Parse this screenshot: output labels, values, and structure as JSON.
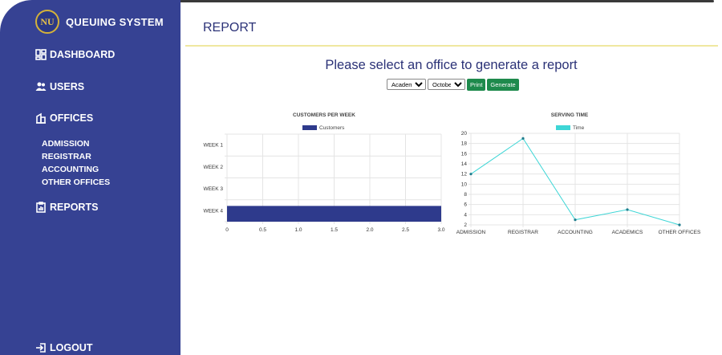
{
  "brand": {
    "logo_text": "NU",
    "title": "QUEUING SYSTEM"
  },
  "nav": {
    "dashboard": "DASHBOARD",
    "users": "USERS",
    "offices": "OFFICES",
    "offices_sub": [
      "ADMISSION",
      "REGISTRAR",
      "ACCOUNTING",
      "OTHER OFFICES"
    ],
    "reports": "REPORTS",
    "logout": "LOGOUT"
  },
  "page": {
    "title": "REPORT",
    "heading": "Please select an office to generate a report"
  },
  "controls": {
    "office_selected": "Academics",
    "month_selected": "October",
    "print_label": "Print",
    "generate_label": "Generate"
  },
  "colors": {
    "sidebar": "#364293",
    "bar": "#2e3a8c",
    "line": "#3ed6d6",
    "button": "#1e8a4c"
  },
  "chart_data": [
    {
      "type": "bar",
      "orientation": "horizontal",
      "title": "CUSTOMERS PER WEEK",
      "categories": [
        "WEEK 1",
        "WEEK 2",
        "WEEK 3",
        "WEEK 4"
      ],
      "series": [
        {
          "name": "Customers",
          "values": [
            0,
            0,
            0,
            3
          ]
        }
      ],
      "xlim": [
        0,
        3
      ],
      "xticks": [
        "0",
        "0.5",
        "1.0",
        "1.5",
        "2.0",
        "2.5",
        "3.0"
      ],
      "grid": true,
      "legend": "top"
    },
    {
      "type": "line",
      "title": "SERVING TIME",
      "categories": [
        "ADMISSION",
        "REGISTRAR",
        "ACCOUNTING",
        "ACADEMICS",
        "OTHER OFFICES"
      ],
      "series": [
        {
          "name": "Time",
          "values": [
            12,
            19,
            3,
            5,
            2
          ]
        }
      ],
      "ylim": [
        2,
        20
      ],
      "yticks": [
        "2",
        "4",
        "6",
        "8",
        "10",
        "12",
        "14",
        "16",
        "18",
        "20"
      ],
      "grid": true,
      "legend": "top"
    }
  ]
}
